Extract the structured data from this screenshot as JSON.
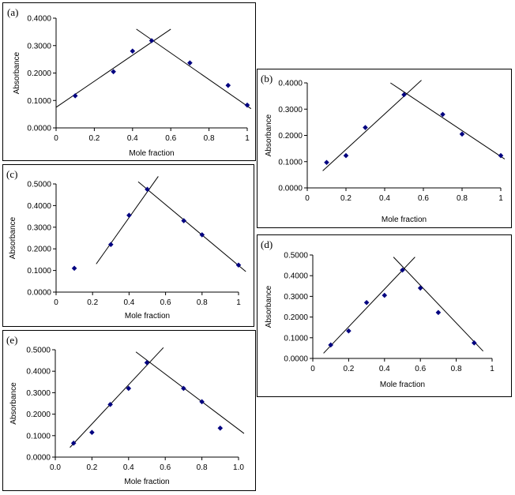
{
  "chart_data": [
    {
      "panel_label": "(a)",
      "type": "scatter",
      "xlabel": "Mole fraction",
      "ylabel": "Absorbance",
      "xlim": [
        0,
        1
      ],
      "ylim": [
        0,
        0.4
      ],
      "x_ticks": [
        "0",
        "0.2",
        "0.4",
        "0.6",
        "0.8",
        "1"
      ],
      "y_ticks": [
        "0.0000",
        "0.1000",
        "0.2000",
        "0.3000",
        "0.4000"
      ],
      "points": [
        [
          0.1,
          0.117
        ],
        [
          0.3,
          0.205
        ],
        [
          0.4,
          0.28
        ],
        [
          0.5,
          0.318
        ],
        [
          0.7,
          0.237
        ],
        [
          0.9,
          0.155
        ],
        [
          1.0,
          0.083
        ]
      ],
      "trendlines": [
        [
          [
            0.0,
            0.075
          ],
          [
            0.6,
            0.36
          ]
        ],
        [
          [
            0.42,
            0.36
          ],
          [
            1.02,
            0.07
          ]
        ]
      ]
    },
    {
      "panel_label": "(b)",
      "type": "scatter",
      "xlabel": "Mole fraction",
      "ylabel": "Absorbance",
      "xlim": [
        0,
        1
      ],
      "ylim": [
        0,
        0.4
      ],
      "x_ticks": [
        "0",
        "0.2",
        "0.4",
        "0.6",
        "0.8",
        "1"
      ],
      "y_ticks": [
        "0.0000",
        "0.1000",
        "0.2000",
        "0.3000",
        "0.4000"
      ],
      "points": [
        [
          0.1,
          0.097
        ],
        [
          0.2,
          0.123
        ],
        [
          0.3,
          0.23
        ],
        [
          0.5,
          0.355
        ],
        [
          0.7,
          0.28
        ],
        [
          0.8,
          0.205
        ],
        [
          1.0,
          0.123
        ]
      ],
      "trendlines": [
        [
          [
            0.08,
            0.065
          ],
          [
            0.59,
            0.41
          ]
        ],
        [
          [
            0.43,
            0.4
          ],
          [
            1.02,
            0.11
          ]
        ]
      ]
    },
    {
      "panel_label": "(c)",
      "type": "scatter",
      "xlabel": "Mole fraction",
      "ylabel": "Absorbance",
      "xlim": [
        0,
        1
      ],
      "ylim": [
        0,
        0.5
      ],
      "x_ticks": [
        "0",
        "0.2",
        "0.4",
        "0.6",
        "0.8",
        "1"
      ],
      "y_ticks": [
        "0.0000",
        "0.1000",
        "0.2000",
        "0.3000",
        "0.4000",
        "0.5000"
      ],
      "points": [
        [
          0.1,
          0.11
        ],
        [
          0.3,
          0.22
        ],
        [
          0.4,
          0.355
        ],
        [
          0.5,
          0.475
        ],
        [
          0.7,
          0.33
        ],
        [
          0.8,
          0.265
        ],
        [
          1.0,
          0.125
        ]
      ],
      "trendlines": [
        [
          [
            0.22,
            0.13
          ],
          [
            0.56,
            0.535
          ]
        ],
        [
          [
            0.45,
            0.51
          ],
          [
            1.04,
            0.095
          ]
        ]
      ]
    },
    {
      "panel_label": "(d)",
      "type": "scatter",
      "xlabel": "Mole fraction",
      "ylabel": "Absorbance",
      "xlim": [
        0,
        1
      ],
      "ylim": [
        0,
        0.5
      ],
      "x_ticks": [
        "0",
        "0.2",
        "0.4",
        "0.6",
        "0.8",
        "1"
      ],
      "y_ticks": [
        "0.0000",
        "0.1000",
        "0.2000",
        "0.3000",
        "0.4000",
        "0.5000"
      ],
      "points": [
        [
          0.1,
          0.065
        ],
        [
          0.2,
          0.133
        ],
        [
          0.3,
          0.27
        ],
        [
          0.4,
          0.305
        ],
        [
          0.5,
          0.427
        ],
        [
          0.6,
          0.34
        ],
        [
          0.7,
          0.222
        ],
        [
          0.9,
          0.075
        ]
      ],
      "trendlines": [
        [
          [
            0.06,
            0.025
          ],
          [
            0.57,
            0.49
          ]
        ],
        [
          [
            0.45,
            0.49
          ],
          [
            0.95,
            0.035
          ]
        ]
      ]
    },
    {
      "panel_label": "(e)",
      "type": "scatter",
      "xlabel": "Mole fraction",
      "ylabel": "Absorbance",
      "xlim": [
        0,
        1
      ],
      "ylim": [
        0,
        0.5
      ],
      "x_ticks": [
        "0.0",
        "0.2",
        "0.4",
        "0.6",
        "0.8",
        "1.0"
      ],
      "y_ticks": [
        "0.0000",
        "0.1000",
        "0.2000",
        "0.3000",
        "0.4000",
        "0.5000"
      ],
      "points": [
        [
          0.1,
          0.065
        ],
        [
          0.2,
          0.115
        ],
        [
          0.3,
          0.245
        ],
        [
          0.4,
          0.32
        ],
        [
          0.5,
          0.44
        ],
        [
          0.7,
          0.32
        ],
        [
          0.8,
          0.258
        ],
        [
          0.9,
          0.135
        ]
      ],
      "trendlines": [
        [
          [
            0.08,
            0.045
          ],
          [
            0.59,
            0.51
          ]
        ],
        [
          [
            0.44,
            0.49
          ],
          [
            1.03,
            0.11
          ]
        ]
      ]
    }
  ],
  "colors": {
    "marker": "#000080",
    "line": "#000000"
  }
}
